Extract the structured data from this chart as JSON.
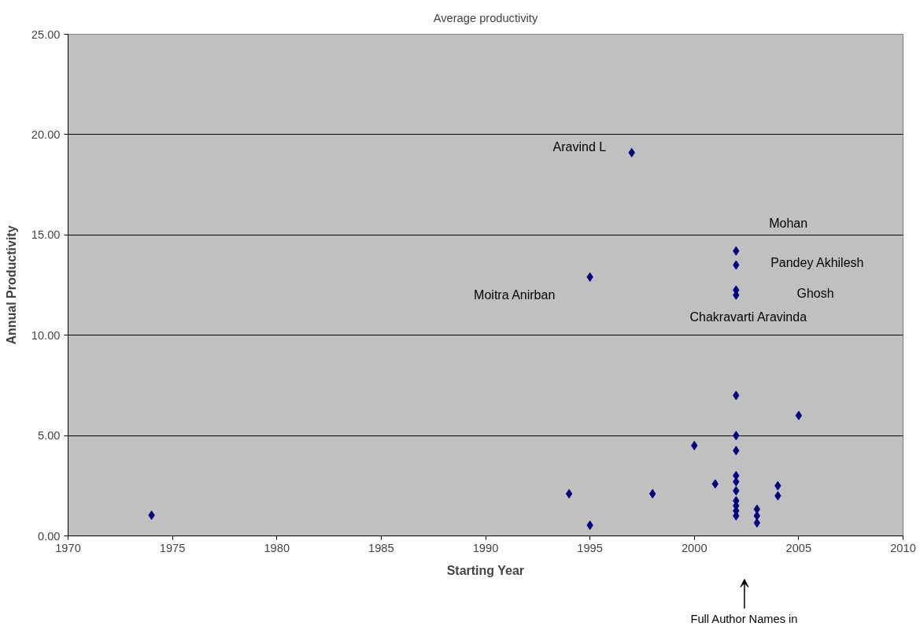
{
  "chart_data": {
    "type": "scatter",
    "title": "Average productivity",
    "xlabel": "Starting Year",
    "ylabel": "Annual Productivity",
    "x": [
      1974,
      1994,
      1995,
      1995,
      1997,
      1998,
      2000,
      2001,
      2002,
      2002,
      2002,
      2002,
      2002,
      2002,
      2002,
      2002,
      2002,
      2002,
      2002,
      2002,
      2002,
      2002,
      2003,
      2003,
      2003,
      2004,
      2004,
      2005
    ],
    "series": [
      {
        "color": "#000080",
        "values": [
          1.03,
          2.1,
          0.53,
          12.9,
          19.1,
          2.1,
          4.5,
          2.59,
          14.2,
          13.5,
          12.25,
          12.0,
          7.0,
          5.0,
          4.25,
          3.0,
          2.7,
          2.25,
          1.75,
          1.5,
          1.25,
          1.0,
          1.33,
          1.0,
          0.65,
          2.5,
          2.0,
          6.0
        ]
      }
    ],
    "marker": "diamond",
    "grid": "y",
    "xlim": [
      1970,
      2010
    ],
    "xticks": [
      1970,
      1975,
      1980,
      1985,
      1990,
      1995,
      2000,
      2005,
      2010
    ],
    "ylim": [
      0,
      25
    ],
    "yticks": [
      {
        "value": 0,
        "label": "0.00"
      },
      {
        "value": 5,
        "label": "5.00"
      },
      {
        "value": 10,
        "label": "10.00"
      },
      {
        "value": 15,
        "label": "15.00"
      },
      {
        "value": 20,
        "label": "20.00"
      },
      {
        "value": 25,
        "label": "25.00"
      }
    ],
    "annotations": [
      "Aravind L",
      "Mohan",
      "Pandey Akhilesh",
      "Ghosh",
      "Chakravarti Aravinda",
      "Moitra Anirban",
      "Full Author Names in"
    ]
  }
}
